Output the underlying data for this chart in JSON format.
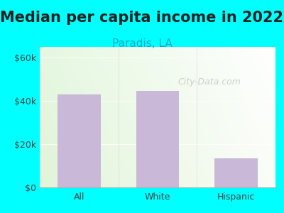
{
  "title": "Median per capita income in 2022",
  "subtitle": "Paradis, LA",
  "categories": [
    "All",
    "White",
    "Hispanic"
  ],
  "values": [
    43000,
    44500,
    13500
  ],
  "bar_color": "#c9b8d8",
  "title_fontsize": 15,
  "subtitle_fontsize": 11,
  "subtitle_color": "#00aacc",
  "title_color": "#222222",
  "tick_color": "#444444",
  "yticks": [
    0,
    20000,
    40000,
    60000
  ],
  "ytick_labels": [
    "$0",
    "$20k",
    "$40k",
    "$60k"
  ],
  "ylim": [
    0,
    65000
  ],
  "background_outer": "#00ffff",
  "watermark": "City-Data.com",
  "figsize": [
    4.0,
    3.0
  ],
  "dpi": 100
}
